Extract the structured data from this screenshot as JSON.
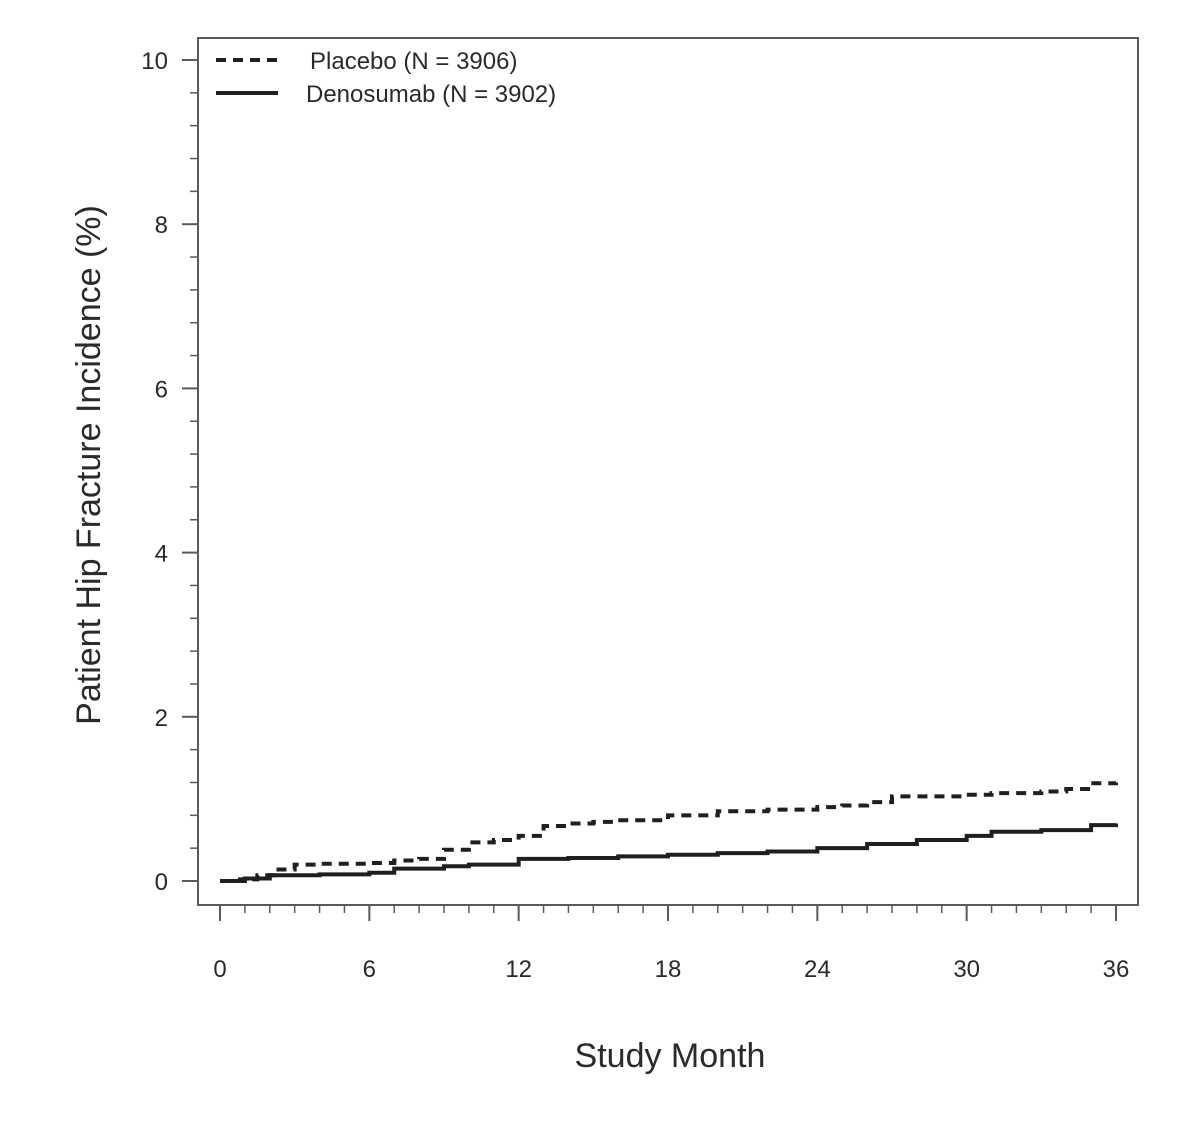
{
  "chart_data": {
    "type": "line",
    "title": "",
    "xlabel": "Study Month",
    "ylabel": "Patient Hip Fracture Incidence (%)",
    "xlim": [
      0,
      36
    ],
    "ylim": [
      0,
      10
    ],
    "xticks": [
      0,
      6,
      12,
      18,
      24,
      30,
      36
    ],
    "yticks": [
      0,
      2,
      4,
      6,
      8,
      10
    ],
    "legend_position": "top-left",
    "grid": false,
    "series": [
      {
        "name": "Placebo (N = 3906)",
        "style": "dashed",
        "color": "#1f1f1f",
        "x": [
          0,
          0.8,
          1.5,
          2.2,
          3,
          4,
          6,
          7,
          8,
          9,
          10,
          11,
          12,
          13,
          14,
          15,
          16,
          18,
          20,
          22,
          24,
          25,
          26,
          27,
          30,
          31,
          33,
          34,
          35,
          36
        ],
        "y": [
          0,
          0.02,
          0.07,
          0.14,
          0.2,
          0.21,
          0.22,
          0.25,
          0.27,
          0.38,
          0.47,
          0.5,
          0.55,
          0.67,
          0.7,
          0.72,
          0.74,
          0.8,
          0.85,
          0.87,
          0.9,
          0.92,
          0.96,
          1.03,
          1.05,
          1.07,
          1.09,
          1.12,
          1.19,
          1.2
        ]
      },
      {
        "name": "Denosumab (N = 3902)",
        "style": "solid",
        "color": "#1f1f1f",
        "x": [
          0,
          1,
          2,
          4,
          6,
          7,
          9,
          10,
          12,
          14,
          16,
          18,
          20,
          22,
          24,
          26,
          28,
          30,
          31,
          33,
          35,
          36
        ],
        "y": [
          0,
          0.03,
          0.07,
          0.08,
          0.1,
          0.15,
          0.18,
          0.2,
          0.27,
          0.28,
          0.3,
          0.32,
          0.34,
          0.36,
          0.4,
          0.45,
          0.5,
          0.55,
          0.6,
          0.62,
          0.68,
          0.7
        ]
      }
    ]
  }
}
